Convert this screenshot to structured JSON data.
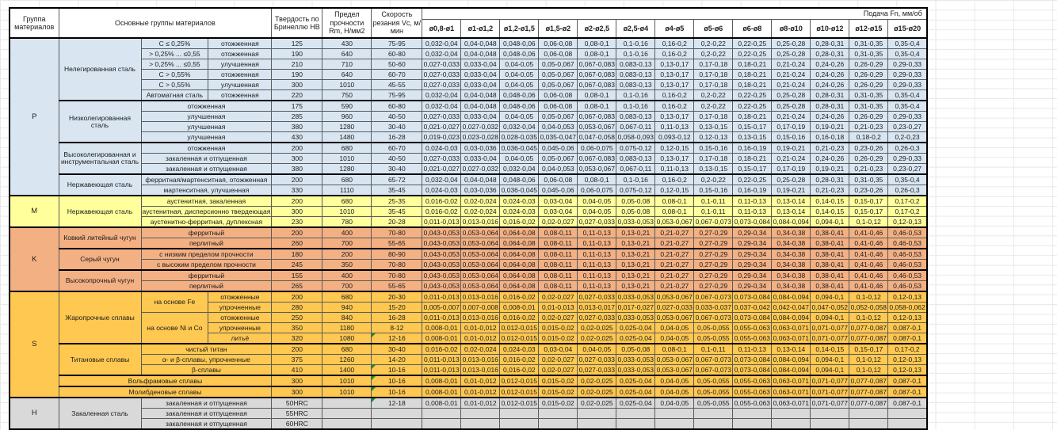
{
  "header": {
    "col_group": "Группа материалов",
    "col_materials": "Основные группы материалов",
    "col_hb": "Твердость по Бринеллю HB",
    "col_rm": "Предел прочности Rm, Н/мм2",
    "col_vc": "Скорость резания Vc, м/мин",
    "feed_title": "Подача Fn, мм/об",
    "feed_cols": [
      "ø0,8-ø1",
      "ø1-ø1,2",
      "ø1,2-ø1,5",
      "ø1,5-ø2",
      "ø2-ø2,5",
      "ø2,5-ø4",
      "ø4-ø5",
      "ø5-ø6",
      "ø6-ø8",
      "ø8-ø10",
      "ø10-ø12",
      "ø12-ø15",
      "ø15-ø20"
    ]
  },
  "colors": {
    "P": "#D9E6F2",
    "M": "#FFFF9C",
    "K": "#F3B083",
    "S": "#FFC851",
    "H": "#D9D9D9",
    "flag_triangle": "#18903c",
    "grid_border": "#5b5b5b"
  },
  "groups": [
    {
      "id": "P",
      "start": 0,
      "count": 15
    },
    {
      "id": "M",
      "start": 15,
      "count": 3
    },
    {
      "id": "K",
      "start": 18,
      "count": 6
    },
    {
      "id": "S",
      "start": 24,
      "count": 10
    },
    {
      "id": "H",
      "start": 34,
      "count": 3
    }
  ],
  "materials": [
    {
      "start": 0,
      "count": 6,
      "name": "Нелегированная сталь"
    },
    {
      "start": 6,
      "count": 4,
      "name": "Низколегированная сталь"
    },
    {
      "start": 10,
      "count": 3,
      "name": "Высоколегированная и инструментальная сталь"
    },
    {
      "start": 13,
      "count": 2,
      "name": "Нержавеющая сталь"
    },
    {
      "start": 15,
      "count": 3,
      "name": "Нержавеющая сталь"
    },
    {
      "start": 18,
      "count": 2,
      "name": "Ковкий литейный чугун"
    },
    {
      "start": 20,
      "count": 2,
      "name": "Серый чугун"
    },
    {
      "start": 22,
      "count": 2,
      "name": "Высокопрочный чугун"
    },
    {
      "start": 24,
      "count": 5,
      "name": "Жаропрочные сплавы"
    },
    {
      "start": 29,
      "count": 3,
      "name": "Титановые сплавы"
    },
    {
      "start": 32,
      "count": 1,
      "name": "Вольфрамовые сплавы",
      "full": true
    },
    {
      "start": 33,
      "count": 1,
      "name": "Молибденовые сплавы",
      "full": true
    },
    {
      "start": 34,
      "count": 3,
      "name": "Закаленная сталь"
    }
  ],
  "span1": [
    {
      "start": 24,
      "count": 2,
      "text": "на основе Fe"
    },
    {
      "start": 26,
      "count": 3,
      "text": "на основе Ni и Co"
    }
  ],
  "feed_patterns": {
    "A": [
      "0,032-0,04",
      "0,04-0,048",
      "0,048-0,06",
      "0,06-0,08",
      "0,08-0,1",
      "0,1-0,16",
      "0,16-0,2",
      "0,2-0,22",
      "0,22-0,25",
      "0,25-0,28",
      "0,28-0,31",
      "0,31-0,35",
      "0,35-0,4"
    ],
    "B": [
      "0,027-0,033",
      "0,033-0,04",
      "0,04-0,05",
      "0,05-0,067",
      "0,067-0,083",
      "0,083-0,13",
      "0,13-0,17",
      "0,17-0,18",
      "0,18-0,21",
      "0,21-0,24",
      "0,24-0,26",
      "0,26-0,29",
      "0,29-0,33"
    ],
    "C": [
      "0,021-0,027",
      "0,027-0,032",
      "0,032-0,04",
      "0,04-0,053",
      "0,053-0,067",
      "0,067-0,11",
      "0,11-0,13",
      "0,13-0,15",
      "0,15-0,17",
      "0,17-0,19",
      "0,19-0,21",
      "0,21-0,23",
      "0,23-0,27"
    ],
    "D": [
      "0,024-0,03",
      "0,03-0,036",
      "0,036-0,045",
      "0,045-0,06",
      "0,06-0,075",
      "0,075-0,12",
      "0,12-0,15",
      "0,15-0,16",
      "0,16-0,19",
      "0,19-0,21",
      "0,21-0,23",
      "0,23-0,26",
      "0,26-0,3"
    ],
    "E": [
      "0,019-0,023",
      "0,023-0,028",
      "0,028-0,035",
      "0,035-0,047",
      "0,047-0,058",
      "0,058-0,093",
      "0,093-0,12",
      "0,12-0,13",
      "0,13-0,15",
      "0,15-0,16",
      "0,16-0,18",
      "0,18-0,2",
      "0,2-0,23"
    ],
    "F": [
      "0,016-0,02",
      "0,02-0,024",
      "0,024-0,03",
      "0,03-0,04",
      "0,04-0,05",
      "0,05-0,08",
      "0,08-0,1",
      "0,1-0,11",
      "0,11-0,13",
      "0,13-0,14",
      "0,14-0,15",
      "0,15-0,17",
      "0,17-0,2"
    ],
    "G": [
      "0,011-0,013",
      "0,013-0,016",
      "0,016-0,02",
      "0,02-0,027",
      "0,027-0,033",
      "0,033-0,053",
      "0,053-0,067",
      "0,067-0,073",
      "0,073-0,084",
      "0,084-0,094",
      "0,094-0,1",
      "0,1-0,12",
      "0,12-0,13"
    ],
    "K": [
      "0,043-0,053",
      "0,053-0,064",
      "0,064-0,08",
      "0,08-0,11",
      "0,11-0,13",
      "0,13-0,21",
      "0,21-0,27",
      "0,27-0,29",
      "0,29-0,34",
      "0,34-0,38",
      "0,38-0,41",
      "0,41-0,46",
      "0,46-0,53"
    ],
    "H2": [
      "0,005-0,007",
      "0,007-0,008",
      "0,008-0,01",
      "0,01-0,013",
      "0,013-0,017",
      "0,017-0,027",
      "0,027-0,033",
      "0,033-0,037",
      "0,037-0,042",
      "0,042-0,047",
      "0,047-0,052",
      "0,052-0,058",
      "0,058-0,062"
    ],
    "I": [
      "0,008-0,01",
      "0,01-0,012",
      "0,012-0,015",
      "0,015-0,02",
      "0,02-0,025",
      "0,025-0,04",
      "0,04-0,05",
      "0,05-0,055",
      "0,055-0,063",
      "0,063-0,071",
      "0,071-0,077",
      "0,077-0,087",
      "0,087-0,1"
    ]
  },
  "rows": [
    {
      "c1": "C ≤ 0,25%",
      "c2": "отожженная",
      "hb": "125",
      "rm": "430",
      "vc": "75-95",
      "f": "A"
    },
    {
      "c1": "> 0,25% ... ≤0,55",
      "c2": "отожженная",
      "hb": "190",
      "rm": "640",
      "vc": "60-80",
      "f": "A"
    },
    {
      "c1": "> 0,25% ... ≤0,55",
      "c2": "улучшенная",
      "hb": "210",
      "rm": "710",
      "vc": "50-60",
      "f": "B"
    },
    {
      "c1": "C > 0,55%",
      "c2": "отожженная",
      "hb": "190",
      "rm": "640",
      "vc": "60-70",
      "f": "B"
    },
    {
      "c1": "C > 0,55%",
      "c2": "улучшенная",
      "hb": "300",
      "rm": "1010",
      "vc": "45-55",
      "f": "B"
    },
    {
      "c1": "Автоматная сталь",
      "c2": "отожженная",
      "hb": "220",
      "rm": "750",
      "vc": "75-95",
      "f": "A"
    },
    {
      "cm": "отожженная",
      "hb": "175",
      "rm": "590",
      "vc": "60-80",
      "f": "A"
    },
    {
      "cm": "улучшенная",
      "hb": "285",
      "rm": "960",
      "vc": "40-50",
      "f": "B"
    },
    {
      "cm": "улучшенная",
      "hb": "380",
      "rm": "1280",
      "vc": "30-40",
      "f": "C"
    },
    {
      "cm": "улучшенная",
      "hb": "430",
      "rm": "1480",
      "vc": "16-28",
      "f": "E"
    },
    {
      "cm": "отожженная",
      "hb": "200",
      "rm": "680",
      "vc": "60-70",
      "f": "D"
    },
    {
      "cm": "закаленная и отпущенная",
      "hb": "300",
      "rm": "1010",
      "vc": "40-50",
      "f": "B"
    },
    {
      "cm": "закаленная и отпущенная",
      "hb": "380",
      "rm": "1280",
      "vc": "30-40",
      "f": "C"
    },
    {
      "cm": "ферритная/мартенситная, отожженная",
      "hb": "200",
      "rm": "680",
      "vc": "65-72",
      "f": "A"
    },
    {
      "cm": "мартенситная, улучшенная",
      "hb": "330",
      "rm": "1110",
      "vc": "35-45",
      "f": "D"
    },
    {
      "cm": "аустенитная, закаленная",
      "hb": "200",
      "rm": "680",
      "vc": "25-35",
      "f": "F"
    },
    {
      "cm": "аустенитная, дисперсионно твердеющая",
      "hb": "300",
      "rm": "1010",
      "vc": "35-45",
      "f": "F"
    },
    {
      "cm": "аустенитно-ферритная, дуплексная",
      "hb": "230",
      "rm": "780",
      "vc": "20-28",
      "f": "G"
    },
    {
      "cm": "ферритный",
      "hb": "200",
      "rm": "400",
      "vc": "70-80",
      "f": "K"
    },
    {
      "cm": "перлитный",
      "hb": "260",
      "rm": "700",
      "vc": "55-65",
      "f": "K"
    },
    {
      "cm": "с низким пределом прочности",
      "hb": "180",
      "rm": "200",
      "vc": "80-90",
      "f": "K"
    },
    {
      "cm": "с высоким пределом прочности",
      "hb": "245",
      "rm": "350",
      "vc": "70-80",
      "f": "K"
    },
    {
      "cm": "ферритный",
      "hb": "155",
      "rm": "400",
      "vc": "70-80",
      "f": "K"
    },
    {
      "cm": "перлитный",
      "hb": "265",
      "rm": "700",
      "vc": "55-65",
      "f": "K"
    },
    {
      "c2": "отожженные",
      "hb": "200",
      "rm": "680",
      "vc": "20-30",
      "f": "G"
    },
    {
      "c2": "упрочненные",
      "hb": "280",
      "rm": "940",
      "vc": "15-20",
      "f": "H2"
    },
    {
      "c2": "отожженные",
      "hb": "250",
      "rm": "840",
      "vc": "16-28",
      "f": "G"
    },
    {
      "c2": "упрочненные",
      "hb": "350",
      "rm": "1180",
      "vc": "8-12",
      "f": "I"
    },
    {
      "c2": "литьё",
      "hb": "320",
      "rm": "1080",
      "vc": "12-16",
      "f": "I",
      "flag": true
    },
    {
      "cm": "чистый титан",
      "hb": "200",
      "rm": "680",
      "vc": "30-40",
      "f": "F"
    },
    {
      "cm": "α- и β-сплавы, упрочненные",
      "hb": "375",
      "rm": "1260",
      "vc": "14-20",
      "f": "G"
    },
    {
      "cm": "β-сплавы",
      "hb": "410",
      "rm": "1400",
      "vc": "10-16",
      "f": "G",
      "flag": true
    },
    {
      "hb": "300",
      "rm": "1010",
      "vc": "10-16",
      "f": "I",
      "flag": true
    },
    {
      "hb": "300",
      "rm": "1010",
      "vc": "10-16",
      "f": "I",
      "flag": true
    },
    {
      "cm": "закаленная и отпущенная",
      "hb": "50HRC",
      "rm": "",
      "vc": "12-18",
      "f": "I",
      "flag": true
    },
    {
      "cm": "закаленная и отпущенная",
      "hb": "55HRC",
      "rm": "",
      "vc": "",
      "f": null
    },
    {
      "cm": "закаленная и отпущенная",
      "hb": "60HRC",
      "rm": "",
      "vc": "",
      "f": null
    }
  ]
}
